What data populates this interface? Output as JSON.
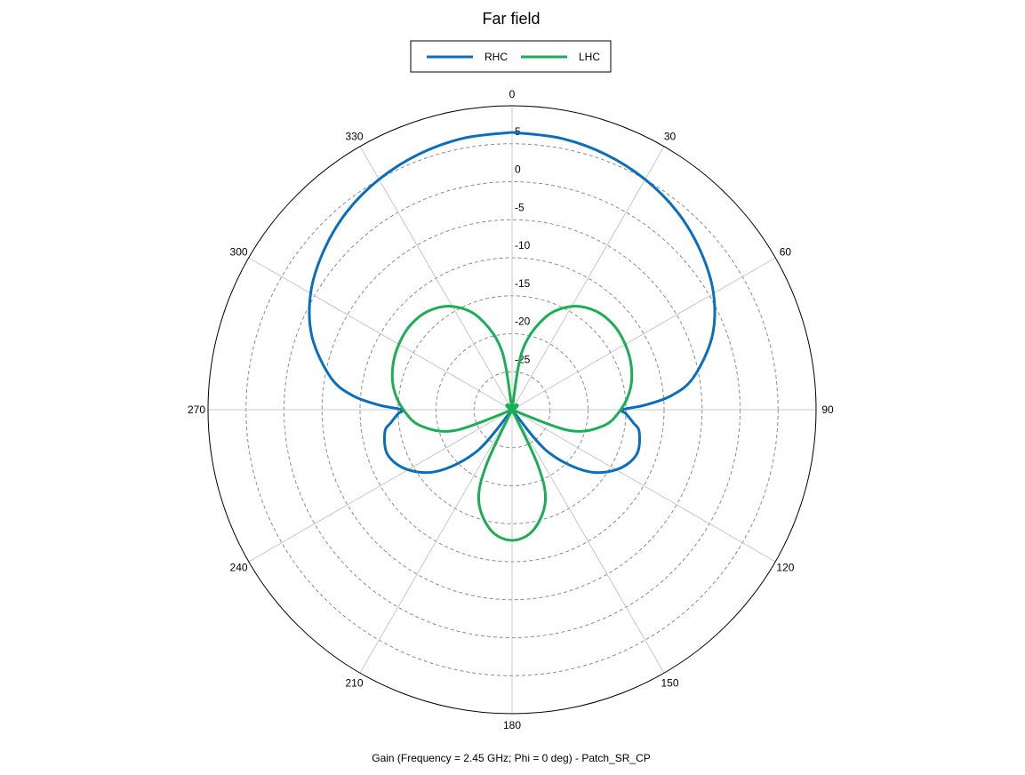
{
  "chart_data": {
    "type": "polar-line",
    "title": "Far field",
    "xlabel": "Gain (Frequency = 2.45 GHz; Phi = 0 deg) - Patch_SR_CP",
    "angle_ticks": [
      "0",
      "30",
      "60",
      "90",
      "120",
      "150",
      "180",
      "210",
      "240",
      "270",
      "300",
      "330"
    ],
    "angle_direction": "clockwise",
    "zero_angle_position": "top",
    "radial_range_dB": [
      -30,
      10
    ],
    "radial_ticks": [
      "5",
      "0",
      "-5",
      "-10",
      "-15",
      "-20",
      "-25"
    ],
    "legend_placement": "top-center",
    "grid": true,
    "series": [
      {
        "name": "RHC",
        "color": "#0A6EBD",
        "points": [
          [
            0,
            6.5
          ],
          [
            10,
            6.3
          ],
          [
            20,
            5.8
          ],
          [
            30,
            5.0
          ],
          [
            40,
            3.9
          ],
          [
            50,
            2.4
          ],
          [
            60,
            0.6
          ],
          [
            70,
            -2.0
          ],
          [
            80,
            -5.8
          ],
          [
            85,
            -9.0
          ],
          [
            88,
            -12.5
          ],
          [
            90,
            -15.5
          ],
          [
            92,
            -15.0
          ],
          [
            96,
            -14.0
          ],
          [
            100,
            -13.0
          ],
          [
            110,
            -12.6
          ],
          [
            120,
            -14.2
          ],
          [
            130,
            -17.5
          ],
          [
            140,
            -23.0
          ],
          [
            150,
            -30.0
          ],
          [
            210,
            -30.0
          ],
          [
            220,
            -23.0
          ],
          [
            230,
            -17.5
          ],
          [
            240,
            -14.2
          ],
          [
            250,
            -12.6
          ],
          [
            260,
            -13.0
          ],
          [
            264,
            -14.0
          ],
          [
            268,
            -15.0
          ],
          [
            270,
            -15.5
          ],
          [
            272,
            -12.5
          ],
          [
            275,
            -9.0
          ],
          [
            280,
            -5.8
          ],
          [
            290,
            -2.0
          ],
          [
            300,
            0.6
          ],
          [
            310,
            2.4
          ],
          [
            320,
            3.9
          ],
          [
            330,
            5.0
          ],
          [
            340,
            5.8
          ],
          [
            350,
            6.3
          ],
          [
            360,
            6.5
          ]
        ]
      },
      {
        "name": "LHC",
        "color": "#1AAE55",
        "points": [
          [
            0,
            -30.0
          ],
          [
            10,
            -22.0
          ],
          [
            20,
            -17.0
          ],
          [
            30,
            -14.3
          ],
          [
            40,
            -13.0
          ],
          [
            50,
            -12.6
          ],
          [
            60,
            -12.8
          ],
          [
            70,
            -13.3
          ],
          [
            80,
            -14.2
          ],
          [
            90,
            -15.7
          ],
          [
            100,
            -17.8
          ],
          [
            110,
            -22.0
          ],
          [
            120,
            -30.0
          ],
          [
            150,
            -30.0
          ],
          [
            155,
            -22.0
          ],
          [
            160,
            -17.2
          ],
          [
            170,
            -13.9
          ],
          [
            180,
            -12.8
          ],
          [
            190,
            -13.9
          ],
          [
            200,
            -17.2
          ],
          [
            205,
            -22.0
          ],
          [
            210,
            -30.0
          ],
          [
            240,
            -30.0
          ],
          [
            250,
            -22.0
          ],
          [
            260,
            -17.8
          ],
          [
            270,
            -15.7
          ],
          [
            280,
            -14.2
          ],
          [
            290,
            -13.3
          ],
          [
            300,
            -12.8
          ],
          [
            310,
            -12.6
          ],
          [
            320,
            -13.0
          ],
          [
            330,
            -14.3
          ],
          [
            340,
            -17.0
          ],
          [
            350,
            -22.0
          ],
          [
            360,
            -30.0
          ]
        ]
      }
    ]
  }
}
